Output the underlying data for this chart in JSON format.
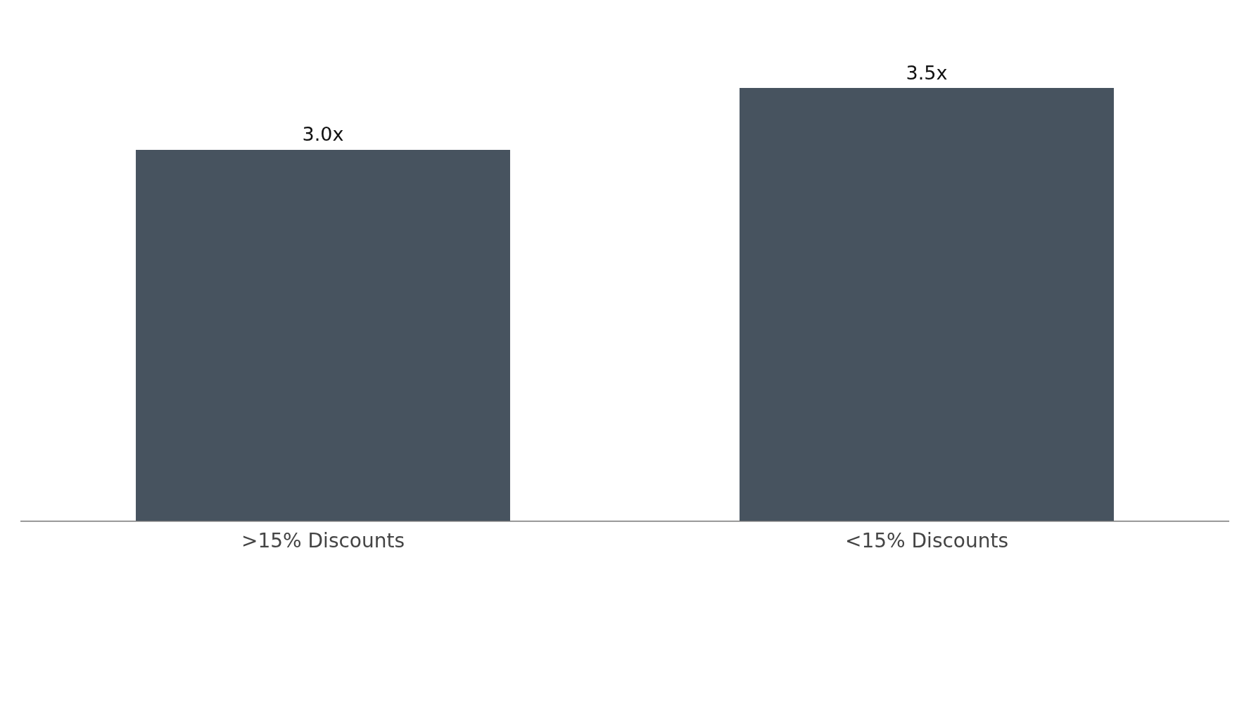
{
  "chart_data": {
    "type": "bar",
    "categories": [
      ">15% Discounts",
      "<15% Discounts"
    ],
    "values": [
      3.0,
      3.5
    ],
    "color": "#47535f",
    "value_labels": [
      "3.0x",
      "3.5x"
    ],
    "grid": false,
    "legend": false,
    "tick_labels": "x"
  }
}
